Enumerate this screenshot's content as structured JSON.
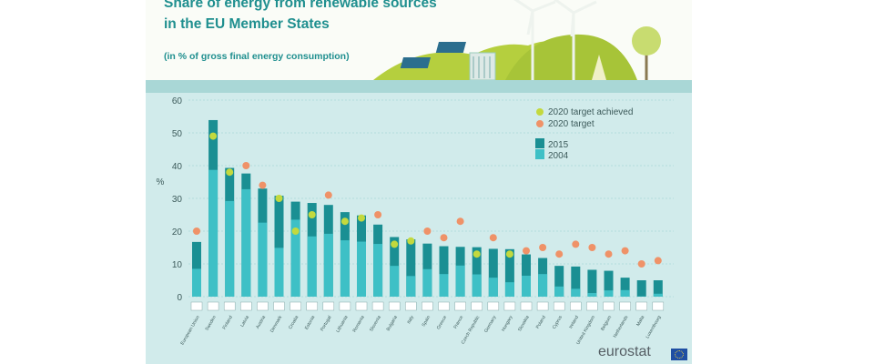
{
  "header": {
    "title_line1": "Share of energy from renewable sources",
    "title_line2": "in the EU Member States",
    "subtitle": "(in % of gross final energy consumption)"
  },
  "logo": {
    "text": "eurostat"
  },
  "colors": {
    "bar_2015": "#1a8f93",
    "bar_2004": "#3ec0c6",
    "target_achieved": "#c3d93e",
    "target": "#ef9268",
    "panel_bg": "#d1ebeb",
    "axis_text": "#3c5a5a"
  },
  "chart_data": {
    "type": "bar",
    "title": "Share of energy from renewable sources in the EU Member States",
    "subtitle": "(in % of gross final energy consumption)",
    "ylabel": "%",
    "ylim": [
      0,
      60
    ],
    "yticks": [
      0,
      10,
      20,
      30,
      40,
      50,
      60
    ],
    "grid": true,
    "legend_position": "top-right",
    "legend": [
      {
        "label": "2020 target achieved",
        "kind": "dot",
        "color": "#c3d93e"
      },
      {
        "label": "2020 target",
        "kind": "dot",
        "color": "#ef9268"
      },
      {
        "label": "2015",
        "kind": "box",
        "color": "#1a8f93"
      },
      {
        "label": "2004",
        "kind": "box",
        "color": "#3ec0c6"
      }
    ],
    "categories": [
      "European Union",
      "Sweden",
      "Finland",
      "Latvia",
      "Austria",
      "Denmark",
      "Croatia",
      "Estonia",
      "Portugal",
      "Lithuania",
      "Romania",
      "Slovenia",
      "Bulgaria",
      "Italy",
      "Spain",
      "Greece",
      "France",
      "Czech Republic",
      "Germany",
      "Hungary",
      "Slovakia",
      "Poland",
      "Cyprus",
      "Ireland",
      "United Kingdom",
      "Belgium",
      "Netherlands",
      "Malta",
      "Luxembourg"
    ],
    "series": [
      {
        "name": "2015",
        "values": [
          16.7,
          53.9,
          39.3,
          37.6,
          33.0,
          30.8,
          29.0,
          28.6,
          28.0,
          25.8,
          24.8,
          22.0,
          18.2,
          17.5,
          16.2,
          15.4,
          15.2,
          15.1,
          14.6,
          14.5,
          12.9,
          11.8,
          9.4,
          9.2,
          8.2,
          7.9,
          5.8,
          5.0,
          5.0
        ]
      },
      {
        "name": "2004",
        "values": [
          8.5,
          38.7,
          29.2,
          32.8,
          22.6,
          14.9,
          23.5,
          18.4,
          19.2,
          17.2,
          16.8,
          16.1,
          9.4,
          6.3,
          8.4,
          6.9,
          9.5,
          6.8,
          5.8,
          4.4,
          6.4,
          6.9,
          3.1,
          2.4,
          1.1,
          1.9,
          2.0,
          0.1,
          0.9
        ]
      },
      {
        "name": "2020 target",
        "values": [
          20,
          49,
          38,
          40,
          34,
          30,
          20,
          25,
          31,
          23,
          24,
          25,
          16,
          17,
          20,
          18,
          23,
          13,
          18,
          13,
          14,
          15,
          13,
          16,
          15,
          13,
          14,
          10,
          11
        ]
      }
    ],
    "target_achieved": [
      false,
      true,
      true,
      false,
      false,
      true,
      true,
      true,
      false,
      true,
      true,
      false,
      true,
      true,
      false,
      false,
      false,
      true,
      false,
      true,
      false,
      false,
      false,
      false,
      false,
      false,
      false,
      false,
      false
    ]
  }
}
